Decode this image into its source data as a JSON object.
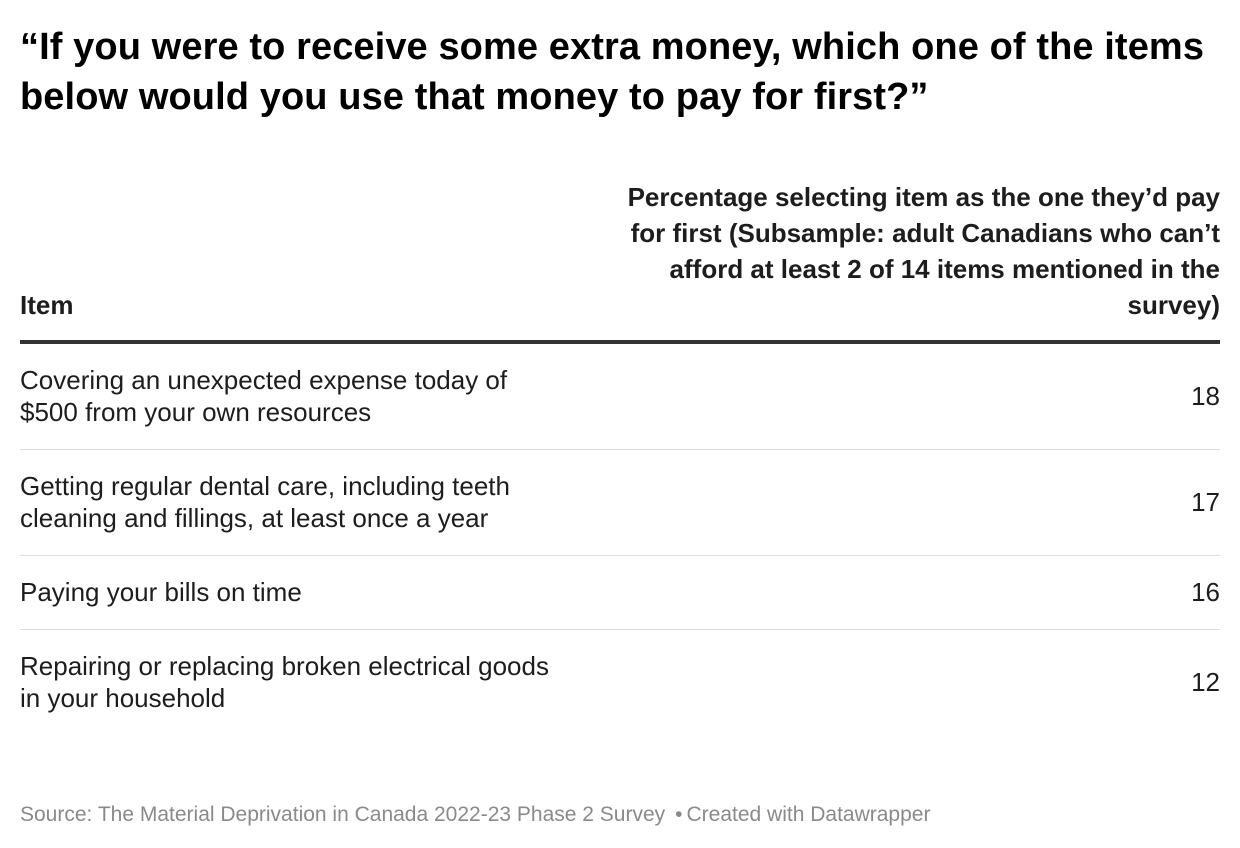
{
  "chart_data": {
    "type": "table",
    "title": "“If you were to receive some extra money, which one of the items below would you use that money to pay for first?”",
    "columns": [
      "Item",
      "Percentage selecting item as the one they’d pay for first (Subsample: adult Canadians who can’t afford at least 2 of 14 items mentioned in the survey)"
    ],
    "rows": [
      {
        "item": "Covering an unexpected expense today of $500 from your own resources",
        "value": "18"
      },
      {
        "item": "Getting regular dental care, including teeth cleaning and fillings, at least once a year",
        "value": "17"
      },
      {
        "item": "Paying your bills on time",
        "value": "16"
      },
      {
        "item": "Repairing or replacing broken electrical goods in your household",
        "value": "12"
      }
    ]
  },
  "footer": {
    "source": "Source: The Material Deprivation in Canada 2022-23 Phase 2 Survey",
    "separator": "•",
    "credit": "Created with Datawrapper"
  },
  "colors": {
    "text": "#1d1d1d",
    "header_rule": "#333333",
    "row_rule": "#dddddd",
    "footer_text": "#8a8a8a"
  }
}
